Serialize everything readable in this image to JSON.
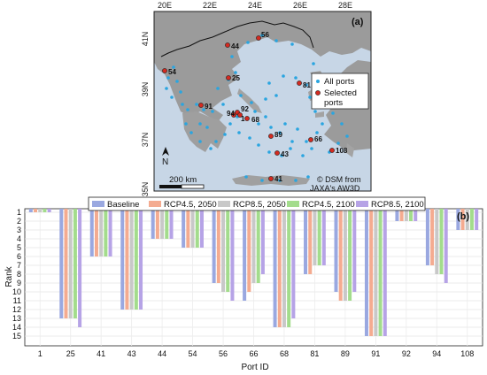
{
  "map_panel": {
    "panel_label": "(a)",
    "lon_ticks": [
      "20E",
      "22E",
      "24E",
      "26E",
      "28E"
    ],
    "lat_ticks": [
      "41N",
      "39N",
      "37N",
      "35N"
    ],
    "legend": {
      "all_ports": "All ports",
      "selected_ports_line1": "Selected",
      "selected_ports_line2": "ports"
    },
    "north_label": "N",
    "scale_label": "200 km",
    "credit_line1": "© DSM from",
    "credit_line2": "JAXA's AW3D",
    "colors": {
      "sea": "#c7d6e6",
      "land": "#9a9a9a",
      "all_ports": "#2aa5e0",
      "selected": "#d42a20"
    },
    "port_labels": [
      {
        "label": "56"
      },
      {
        "label": "44"
      },
      {
        "label": "54"
      },
      {
        "label": "25"
      },
      {
        "label": "81"
      },
      {
        "label": "91"
      },
      {
        "label": "92"
      },
      {
        "label": "94"
      },
      {
        "label": "1"
      },
      {
        "label": "68"
      },
      {
        "label": "89"
      },
      {
        "label": "66"
      },
      {
        "label": "43"
      },
      {
        "label": "108"
      },
      {
        "label": "41"
      }
    ]
  },
  "chart_data": {
    "type": "bar",
    "panel_label": "(b)",
    "xlabel": "Port ID",
    "ylabel": "Rank",
    "categories": [
      "1",
      "25",
      "41",
      "43",
      "44",
      "54",
      "56",
      "66",
      "68",
      "81",
      "89",
      "91",
      "92",
      "94",
      "108"
    ],
    "y_ticks": [
      "1",
      "2",
      "3",
      "4",
      "5",
      "6",
      "7",
      "8",
      "9",
      "10",
      "11",
      "12",
      "13",
      "14",
      "15"
    ],
    "ylim": [
      1,
      15.5
    ],
    "y_axis_inverted": true,
    "grid": true,
    "legend_position": "top",
    "series": [
      {
        "name": "Baseline",
        "color": "#9aa8e0",
        "values": [
          1,
          13,
          6,
          12,
          4,
          5,
          9,
          11,
          14,
          8,
          10,
          15,
          2,
          7,
          3
        ]
      },
      {
        "name": "RCP4.5, 2050",
        "color": "#f4ab90",
        "values": [
          1,
          13,
          6,
          12,
          4,
          5,
          9,
          10,
          14,
          8,
          11,
          15,
          2,
          7,
          3
        ]
      },
      {
        "name": "RCP8.5, 2050",
        "color": "#c8c8c8",
        "values": [
          1,
          13,
          6,
          12,
          4,
          5,
          10,
          9,
          14,
          7,
          11,
          15,
          2,
          8,
          3
        ]
      },
      {
        "name": "RCP4.5, 2100",
        "color": "#a3dc8c",
        "values": [
          1,
          13,
          6,
          12,
          4,
          5,
          10,
          9,
          14,
          7,
          11,
          15,
          2,
          8,
          3
        ]
      },
      {
        "name": "RCP8.5, 2100",
        "color": "#b6a3e6",
        "values": [
          1,
          14,
          6,
          12,
          4,
          5,
          11,
          8,
          13,
          7,
          10,
          15,
          2,
          9,
          3
        ]
      }
    ]
  }
}
